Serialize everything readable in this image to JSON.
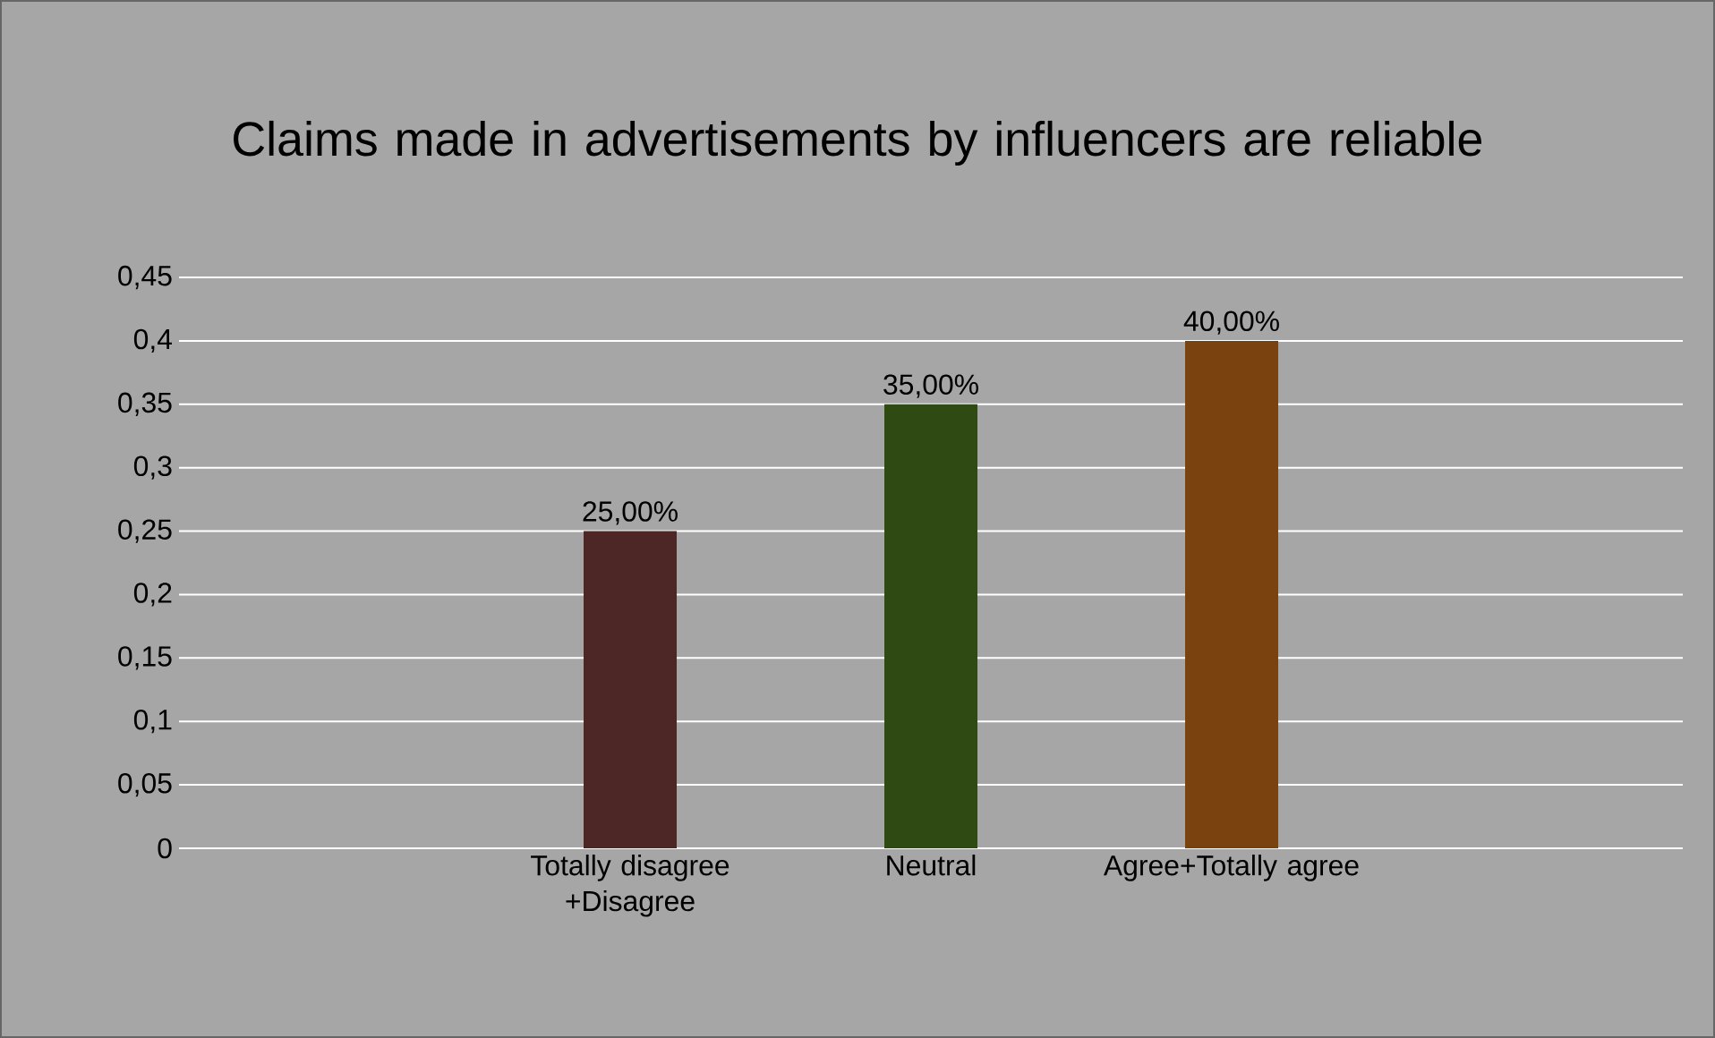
{
  "chart_data": {
    "type": "bar",
    "title": "Claims made in advertisements by influencers are reliable",
    "categories": [
      null,
      "Totally disagree +Disagree",
      "Neutral",
      "Agree+Totally agree",
      null
    ],
    "values": [
      null,
      0.25,
      0.35,
      0.4,
      null
    ],
    "colors": [
      "#4d2626",
      "#4d2626",
      "#2f4a12",
      "#7a420e",
      "#7a420e"
    ],
    "value_labels": [
      null,
      "25,00%",
      "35,00%",
      "40,00%",
      null
    ],
    "ylim": [
      0,
      0.45
    ],
    "yticks": [
      {
        "value": 0,
        "label": "0"
      },
      {
        "value": 0.05,
        "label": "0,05"
      },
      {
        "value": 0.1,
        "label": "0,1"
      },
      {
        "value": 0.15,
        "label": "0,15"
      },
      {
        "value": 0.2,
        "label": "0,2"
      },
      {
        "value": 0.25,
        "label": "0,25"
      },
      {
        "value": 0.3,
        "label": "0,3"
      },
      {
        "value": 0.35,
        "label": "0,35"
      },
      {
        "value": 0.4,
        "label": "0,4"
      },
      {
        "value": 0.45,
        "label": "0,45"
      }
    ],
    "grid": "y"
  }
}
